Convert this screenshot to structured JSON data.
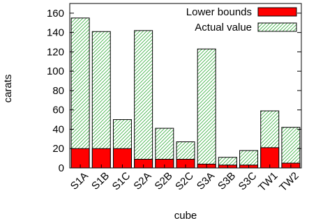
{
  "chart_data": {
    "type": "bar",
    "stacked": "overlay",
    "xlabel": "cube",
    "ylabel": "carats",
    "ylim": [
      0,
      170
    ],
    "yticks": [
      0,
      20,
      40,
      60,
      80,
      100,
      120,
      140,
      160
    ],
    "categories": [
      "S1A",
      "S1B",
      "S1C",
      "S2A",
      "S2B",
      "S2C",
      "S3A",
      "S3B",
      "S3C",
      "TW1",
      "TW2"
    ],
    "series": [
      {
        "name": "Lower bounds",
        "values": [
          20,
          20,
          20,
          9,
          9,
          9,
          4,
          3,
          3,
          21,
          5
        ],
        "color": "#ff0000",
        "fill": "solid"
      },
      {
        "name": "Actual value",
        "values": [
          155,
          141,
          50,
          142,
          41,
          27,
          123,
          11,
          18,
          59,
          42
        ],
        "color": "#2ca02c",
        "fill": "hatch"
      }
    ],
    "legend": "top-right",
    "grid": false
  }
}
